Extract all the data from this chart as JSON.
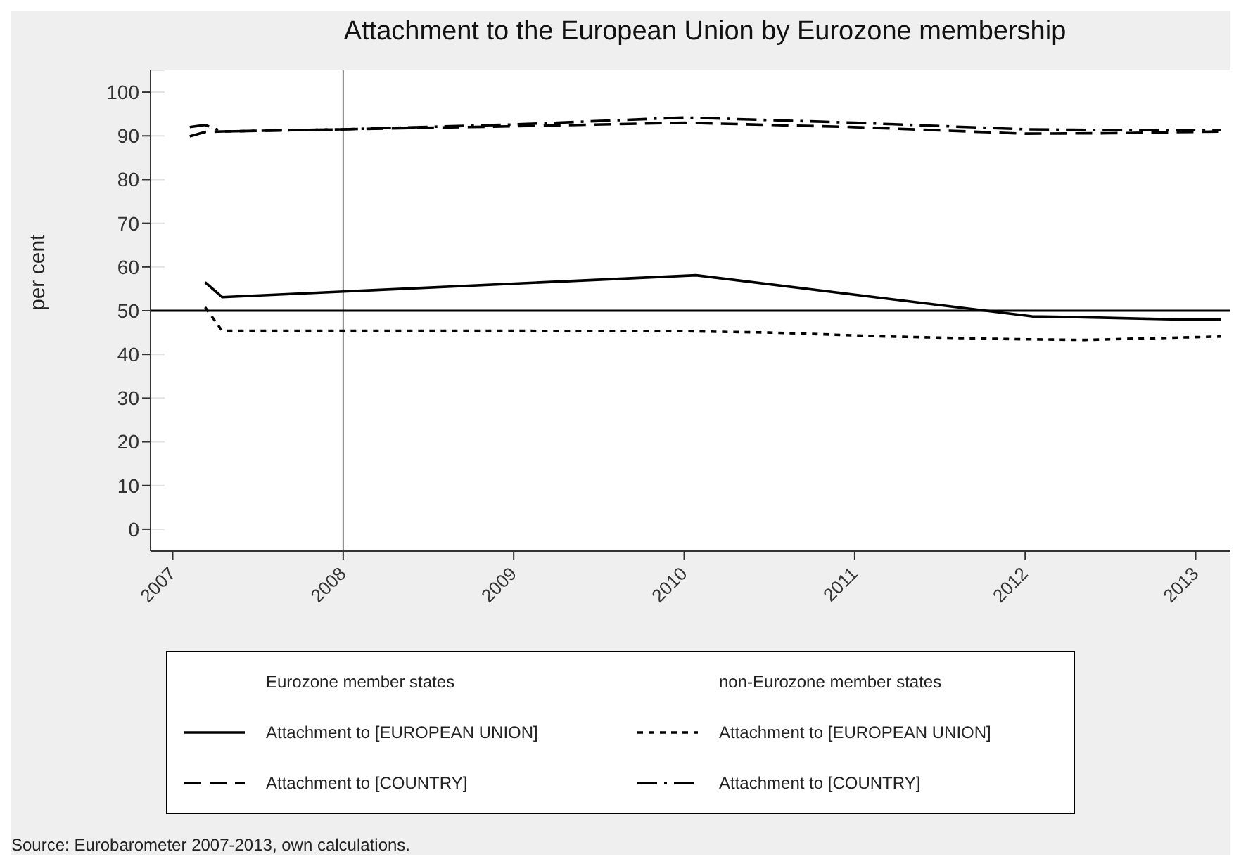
{
  "chart_data": {
    "type": "line",
    "title": "Attachment to the European Union by Eurozone membership",
    "ylabel": "per cent",
    "xlim": [
      2006.87,
      2013.2
    ],
    "xticks": [
      2007,
      2008,
      2009,
      2010,
      2011,
      2012,
      2013
    ],
    "ylim": [
      -5,
      105
    ],
    "yticks": [
      0,
      10,
      20,
      30,
      40,
      50,
      60,
      70,
      80,
      90,
      100
    ],
    "grid": "y",
    "legend": "bottom",
    "annotations": [
      "Eurozone member states",
      "non-Eurozone member states",
      "Source: Eurobarometer 2007-2013, own calculations."
    ],
    "ref_lines": [
      {
        "axis": "x",
        "value": 2008,
        "color": "#808080"
      },
      {
        "axis": "y",
        "value": 50,
        "color": "#000000"
      }
    ],
    "series": [
      {
        "name": "Attachment to [EUROPEAN UNION]",
        "color": "#000000",
        "line_style": "solid",
        "x": [
          2007.19,
          2007.29,
          2010.07,
          2012.04,
          2012.35,
          2012.9,
          2013.15
        ],
        "values": [
          56.5,
          53.1,
          58.1,
          48.7,
          48.5,
          48.0,
          48.0
        ]
      },
      {
        "name": "Attachment to [EUROPEAN UNION]",
        "color": "#000000",
        "line_style": "dotted",
        "x": [
          2007.19,
          2007.29,
          2008,
          2009,
          2010,
          2010.5,
          2011.19,
          2011.9,
          2012.35,
          2013.15
        ],
        "values": [
          50.8,
          45.4,
          45.4,
          45.4,
          45.3,
          45.0,
          44.1,
          43.5,
          43.3,
          44.1
        ]
      },
      {
        "name": "Attachment to [COUNTRY]",
        "color": "#000000",
        "line_style": "dashed",
        "x": [
          2007.1,
          2007.19,
          2007.29,
          2008,
          2009,
          2010,
          2011,
          2012,
          2012.5,
          2013.15
        ],
        "values": [
          89.9,
          90.9,
          91.0,
          91.5,
          92.2,
          93.0,
          92.0,
          90.5,
          90.6,
          91.0
        ]
      },
      {
        "name": "Attachment to [COUNTRY]",
        "color": "#000000",
        "line_style": "dashdot",
        "x": [
          2007.1,
          2007.19,
          2007.29,
          2008,
          2009,
          2010,
          2011,
          2012,
          2012.5,
          2013.15
        ],
        "values": [
          92.0,
          92.5,
          91.0,
          91.5,
          92.6,
          94.2,
          93.0,
          91.5,
          91.3,
          91.3
        ]
      }
    ]
  }
}
